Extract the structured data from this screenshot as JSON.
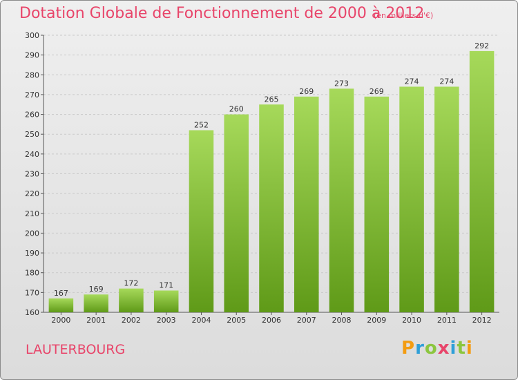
{
  "header": {
    "title": "Dotation Globale de Fonctionnement de 2000 à 2012",
    "unit": "(en milliers d'€)"
  },
  "footer": {
    "place": "LAUTERBOURG",
    "logo_letters": [
      "P",
      "r",
      "o",
      "x",
      "i",
      "t",
      "i"
    ],
    "logo_colors": [
      "#f39c12",
      "#2e9fd8",
      "#8cc63f",
      "#e8456a",
      "#2e9fd8",
      "#8cc63f",
      "#f39c12"
    ]
  },
  "chart_data": {
    "type": "bar",
    "categories": [
      "2000",
      "2001",
      "2002",
      "2003",
      "2004",
      "2005",
      "2006",
      "2007",
      "2008",
      "2009",
      "2010",
      "2011",
      "2012"
    ],
    "values": [
      167,
      169,
      172,
      171,
      252,
      260,
      265,
      269,
      273,
      269,
      274,
      274,
      292
    ],
    "ylim": [
      160,
      300
    ],
    "yticks": [
      160,
      170,
      180,
      190,
      200,
      210,
      220,
      230,
      240,
      250,
      260,
      270,
      280,
      290,
      300
    ],
    "grid": true,
    "bar_color": "#7db834"
  }
}
